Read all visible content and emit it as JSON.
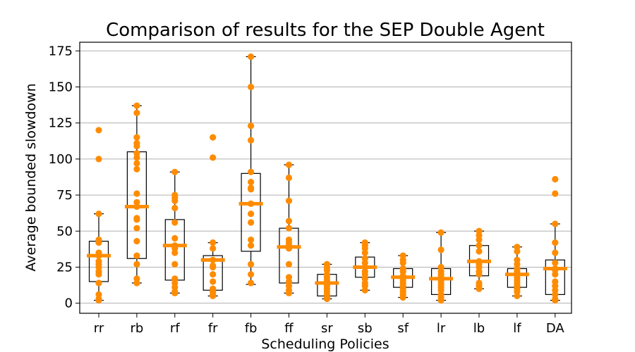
{
  "chart_data": {
    "type": "box",
    "title": "Comparison of results for the SEP Double Agent",
    "xlabel": "Scheduling Policies",
    "ylabel": "Average bounded slowdown",
    "ylim": [
      -7,
      181
    ],
    "yticks": [
      0,
      25,
      50,
      75,
      100,
      125,
      150,
      175
    ],
    "grid": "horizontal",
    "box_color": "#000000",
    "point_color": "#ff8c00",
    "median_color": "#ff8c00",
    "categories": [
      "rr",
      "rb",
      "rf",
      "fr",
      "fb",
      "ff",
      "sr",
      "sb",
      "sf",
      "lr",
      "lb",
      "lf",
      "DA"
    ],
    "boxes": [
      {
        "name": "rr",
        "whislo": 2,
        "q1": 15,
        "med": 33,
        "q3": 43,
        "whishi": 62,
        "points": [
          120,
          100,
          62,
          44,
          42,
          35,
          33,
          29,
          27,
          25,
          22,
          20,
          14,
          6,
          3,
          2
        ]
      },
      {
        "name": "rb",
        "whislo": 14,
        "q1": 31,
        "med": 67,
        "q3": 105,
        "whishi": 137,
        "points": [
          137,
          132,
          115,
          111,
          109,
          104,
          101,
          97,
          93,
          76,
          70,
          67,
          59,
          58,
          52,
          43,
          33,
          27,
          17,
          14
        ]
      },
      {
        "name": "rf",
        "whislo": 7,
        "q1": 16,
        "med": 40,
        "q3": 58,
        "whishi": 91,
        "points": [
          91,
          75,
          73,
          71,
          66,
          56,
          45,
          40,
          38,
          35,
          27,
          17,
          14,
          11,
          8,
          7
        ]
      },
      {
        "name": "fr",
        "whislo": 5,
        "q1": 9,
        "med": 30,
        "q3": 33,
        "whishi": 42,
        "points": [
          115,
          101,
          42,
          38,
          30,
          26,
          25,
          20,
          15,
          10,
          8,
          6,
          5
        ]
      },
      {
        "name": "fb",
        "whislo": 13,
        "q1": 36,
        "med": 69,
        "q3": 90,
        "whishi": 171,
        "points": [
          171,
          150,
          123,
          113,
          91,
          84,
          80,
          79,
          69,
          62,
          56,
          44,
          40,
          27,
          20,
          14
        ]
      },
      {
        "name": "ff",
        "whislo": 7,
        "q1": 14,
        "med": 39,
        "q3": 52,
        "whishi": 96,
        "points": [
          96,
          87,
          71,
          57,
          52,
          44,
          42,
          40,
          38,
          27,
          18,
          15,
          12,
          9,
          7
        ]
      },
      {
        "name": "sr",
        "whislo": 3,
        "q1": 5,
        "med": 14,
        "q3": 20,
        "whishi": 27,
        "points": [
          27,
          25,
          23,
          20,
          18,
          16,
          14,
          12,
          10,
          8,
          6,
          4,
          3
        ]
      },
      {
        "name": "sb",
        "whislo": 9,
        "q1": 18,
        "med": 25,
        "q3": 32,
        "whishi": 42,
        "points": [
          42,
          40,
          38,
          35,
          31,
          28,
          25,
          22,
          20,
          17,
          14,
          12,
          9
        ]
      },
      {
        "name": "sf",
        "whislo": 4,
        "q1": 11,
        "med": 18,
        "q3": 24,
        "whishi": 33,
        "points": [
          33,
          30,
          28,
          24,
          22,
          19,
          18,
          16,
          14,
          12,
          10,
          8,
          6,
          4
        ]
      },
      {
        "name": "lr",
        "whislo": 2,
        "q1": 6,
        "med": 17,
        "q3": 24,
        "whishi": 49,
        "points": [
          49,
          37,
          25,
          22,
          20,
          18,
          17,
          15,
          13,
          11,
          9,
          6,
          4,
          2
        ]
      },
      {
        "name": "lb",
        "whislo": 10,
        "q1": 19,
        "med": 29,
        "q3": 40,
        "whishi": 50,
        "points": [
          50,
          47,
          44,
          40,
          36,
          29,
          27,
          25,
          22,
          20,
          14,
          12,
          10
        ]
      },
      {
        "name": "lf",
        "whislo": 5,
        "q1": 11,
        "med": 20,
        "q3": 24,
        "whishi": 39,
        "points": [
          39,
          36,
          30,
          27,
          24,
          22,
          20,
          18,
          16,
          14,
          12,
          10,
          8,
          5
        ]
      },
      {
        "name": "DA",
        "whislo": 2,
        "q1": 6,
        "med": 24,
        "q3": 30,
        "whishi": 55,
        "points": [
          86,
          76,
          55,
          42,
          35,
          28,
          24,
          23,
          20,
          15,
          12,
          9,
          6,
          3,
          2
        ]
      }
    ]
  }
}
